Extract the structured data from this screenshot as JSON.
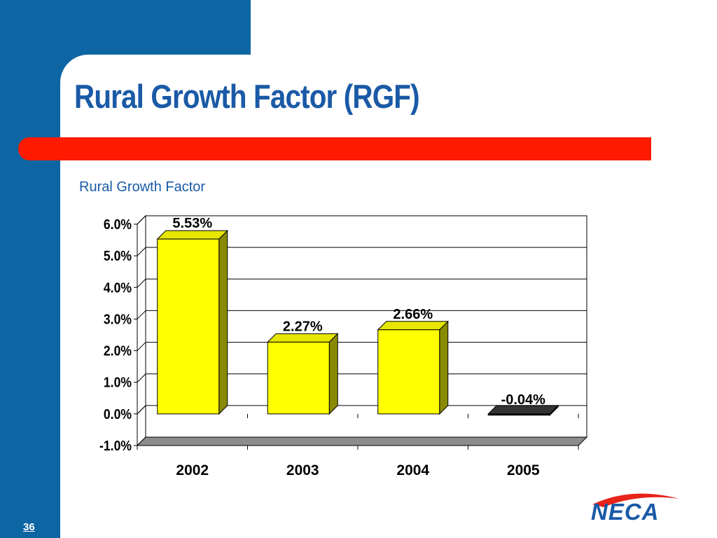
{
  "slide": {
    "title": "Rural Growth Factor (RGF)",
    "page_number": "36",
    "logo_text": "NECA"
  },
  "colors": {
    "brand_blue": "#0e65a3",
    "title_blue": "#1a5aa6",
    "accent_red": "#ff1a00",
    "bar_yellow": "#ffff00",
    "bar_side": "#8a8a00",
    "negative_bar": "#000000"
  },
  "chart_data": {
    "type": "bar",
    "title": "Rural Growth Factor",
    "categories": [
      "2002",
      "2003",
      "2004",
      "2005"
    ],
    "values": [
      5.53,
      2.27,
      2.66,
      -0.04
    ],
    "data_labels": [
      "5.53%",
      "2.27%",
      "2.66%",
      "-0.04%"
    ],
    "ytick_values": [
      -1,
      0,
      1,
      2,
      3,
      4,
      5,
      6
    ],
    "ytick_labels": [
      "-1.0%",
      "0.0%",
      "1.0%",
      "2.0%",
      "3.0%",
      "4.0%",
      "5.0%",
      "6.0%"
    ],
    "ylim": [
      -1,
      6
    ],
    "grid": true,
    "style": "3d"
  }
}
